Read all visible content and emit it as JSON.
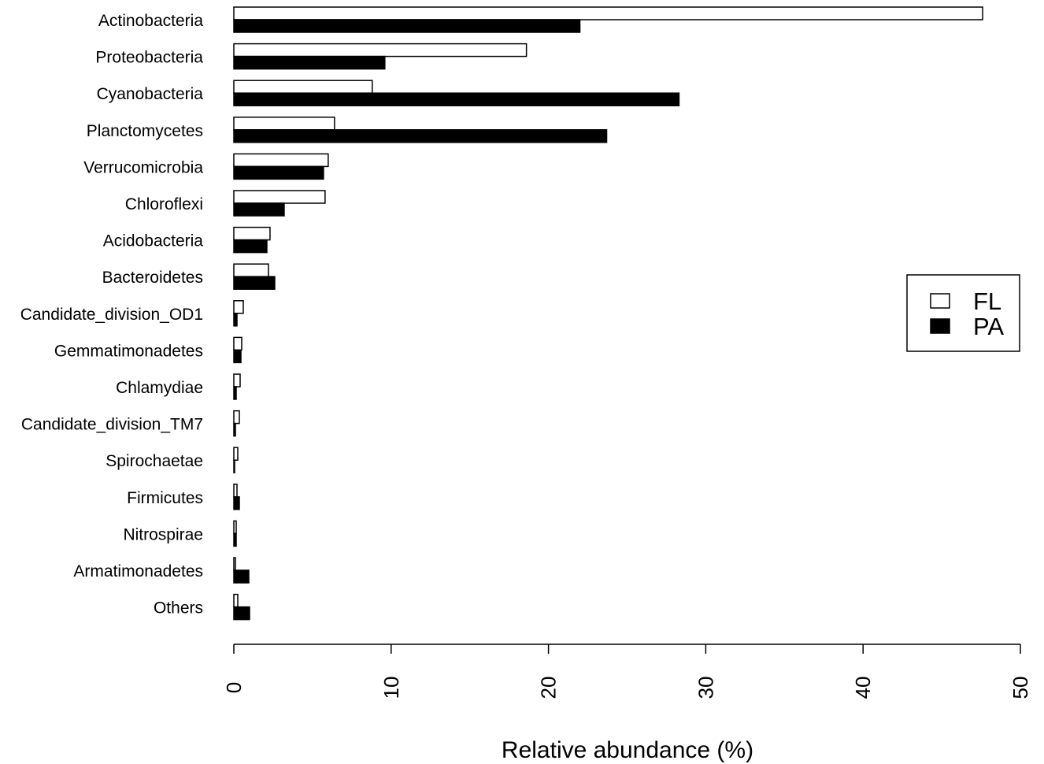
{
  "chart_data": {
    "type": "bar",
    "orientation": "horizontal",
    "categories": [
      "Actinobacteria",
      "Proteobacteria",
      "Cyanobacteria",
      "Planctomycetes",
      "Verrucomicrobia",
      "Chloroflexi",
      "Acidobacteria",
      "Bacteroidetes",
      "Candidate_division_OD1",
      "Gemmatimonadetes",
      "Chlamydiae",
      "Candidate_division_TM7",
      "Spirochaetae",
      "Firmicutes",
      "Nitrospirae",
      "Armatimonadetes",
      "Others"
    ],
    "series": [
      {
        "name": "FL",
        "color": "#ffffff",
        "values": [
          47.6,
          18.6,
          8.8,
          6.4,
          6.0,
          5.8,
          2.3,
          2.2,
          0.6,
          0.5,
          0.4,
          0.35,
          0.25,
          0.2,
          0.15,
          0.1,
          0.25
        ]
      },
      {
        "name": "PA",
        "color": "#000000",
        "values": [
          22.0,
          9.6,
          28.3,
          23.7,
          5.7,
          3.2,
          2.1,
          2.6,
          0.2,
          0.45,
          0.15,
          0.1,
          0.05,
          0.35,
          0.15,
          0.95,
          1.0
        ]
      }
    ],
    "xlabel": "Relative abundance (%)",
    "ylabel": "",
    "title": "",
    "xlim": [
      0,
      50
    ],
    "xticks": [
      "0",
      "10",
      "20",
      "30",
      "40",
      "50"
    ],
    "grid": false,
    "legend_position": "right"
  }
}
